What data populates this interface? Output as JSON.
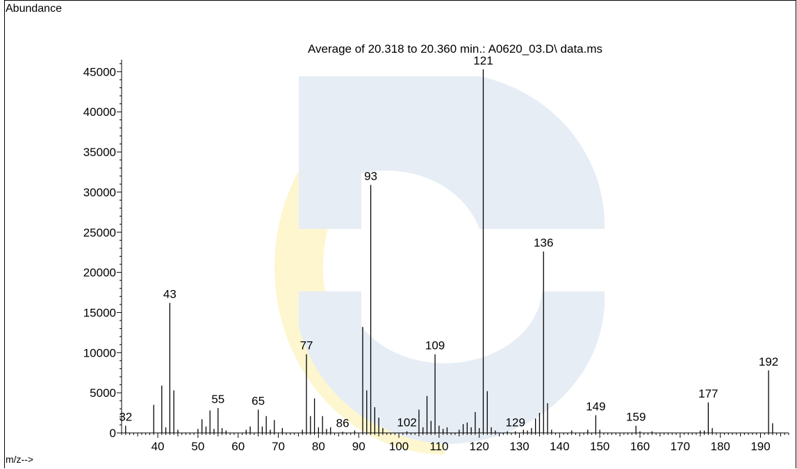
{
  "chart_data": {
    "type": "bar",
    "title": "Average of 20.318 to 20.360 min.: A0620_03.D\\ data.ms",
    "ylabel": "Abundance",
    "xlabel": "m/z-->",
    "xlim": [
      31,
      197
    ],
    "ylim": [
      0,
      46500
    ],
    "xticks": [
      40,
      50,
      60,
      70,
      80,
      90,
      100,
      110,
      120,
      130,
      140,
      150,
      160,
      170,
      180,
      190
    ],
    "yticks": [
      0,
      5000,
      10000,
      15000,
      20000,
      25000,
      30000,
      35000,
      40000,
      45000
    ],
    "peaks": [
      {
        "mz": 32,
        "abundance": 900,
        "label": "32"
      },
      {
        "mz": 39,
        "abundance": 3500
      },
      {
        "mz": 41,
        "abundance": 5900
      },
      {
        "mz": 42,
        "abundance": 700
      },
      {
        "mz": 43,
        "abundance": 16200,
        "label": "43"
      },
      {
        "mz": 44,
        "abundance": 5300
      },
      {
        "mz": 45,
        "abundance": 400
      },
      {
        "mz": 50,
        "abundance": 500
      },
      {
        "mz": 51,
        "abundance": 1700
      },
      {
        "mz": 52,
        "abundance": 800
      },
      {
        "mz": 53,
        "abundance": 2800
      },
      {
        "mz": 54,
        "abundance": 500
      },
      {
        "mz": 55,
        "abundance": 3100,
        "label": "55"
      },
      {
        "mz": 56,
        "abundance": 600
      },
      {
        "mz": 57,
        "abundance": 300
      },
      {
        "mz": 62,
        "abundance": 400
      },
      {
        "mz": 63,
        "abundance": 800
      },
      {
        "mz": 65,
        "abundance": 2900,
        "label": "65"
      },
      {
        "mz": 66,
        "abundance": 800
      },
      {
        "mz": 67,
        "abundance": 2100
      },
      {
        "mz": 68,
        "abundance": 400
      },
      {
        "mz": 69,
        "abundance": 1600
      },
      {
        "mz": 71,
        "abundance": 600
      },
      {
        "mz": 76,
        "abundance": 400
      },
      {
        "mz": 77,
        "abundance": 9800,
        "label": "77"
      },
      {
        "mz": 78,
        "abundance": 2100
      },
      {
        "mz": 79,
        "abundance": 4300
      },
      {
        "mz": 80,
        "abundance": 700
      },
      {
        "mz": 81,
        "abundance": 2100
      },
      {
        "mz": 82,
        "abundance": 500
      },
      {
        "mz": 83,
        "abundance": 700
      },
      {
        "mz": 86,
        "abundance": 150,
        "label": "86"
      },
      {
        "mz": 89,
        "abundance": 300
      },
      {
        "mz": 91,
        "abundance": 13200
      },
      {
        "mz": 92,
        "abundance": 5300
      },
      {
        "mz": 93,
        "abundance": 30900,
        "label": "93"
      },
      {
        "mz": 94,
        "abundance": 3200
      },
      {
        "mz": 95,
        "abundance": 1900
      },
      {
        "mz": 96,
        "abundance": 600
      },
      {
        "mz": 102,
        "abundance": 200,
        "label": "102"
      },
      {
        "mz": 105,
        "abundance": 2900
      },
      {
        "mz": 106,
        "abundance": 700
      },
      {
        "mz": 107,
        "abundance": 4600
      },
      {
        "mz": 108,
        "abundance": 1500
      },
      {
        "mz": 109,
        "abundance": 9800,
        "label": "109"
      },
      {
        "mz": 110,
        "abundance": 900
      },
      {
        "mz": 111,
        "abundance": 500
      },
      {
        "mz": 112,
        "abundance": 700
      },
      {
        "mz": 115,
        "abundance": 400
      },
      {
        "mz": 116,
        "abundance": 1100
      },
      {
        "mz": 117,
        "abundance": 1300
      },
      {
        "mz": 118,
        "abundance": 700
      },
      {
        "mz": 119,
        "abundance": 2600
      },
      {
        "mz": 120,
        "abundance": 600
      },
      {
        "mz": 121,
        "abundance": 45300,
        "label": "121"
      },
      {
        "mz": 122,
        "abundance": 5200
      },
      {
        "mz": 123,
        "abundance": 700
      },
      {
        "mz": 124,
        "abundance": 300
      },
      {
        "mz": 127,
        "abundance": 200
      },
      {
        "mz": 129,
        "abundance": 200,
        "label": "129"
      },
      {
        "mz": 131,
        "abundance": 400
      },
      {
        "mz": 132,
        "abundance": 300
      },
      {
        "mz": 133,
        "abundance": 600
      },
      {
        "mz": 134,
        "abundance": 1800
      },
      {
        "mz": 135,
        "abundance": 2500
      },
      {
        "mz": 136,
        "abundance": 22600,
        "label": "136"
      },
      {
        "mz": 137,
        "abundance": 3700
      },
      {
        "mz": 138,
        "abundance": 400
      },
      {
        "mz": 143,
        "abundance": 300
      },
      {
        "mz": 147,
        "abundance": 400
      },
      {
        "mz": 149,
        "abundance": 2200,
        "label": "149"
      },
      {
        "mz": 150,
        "abundance": 400
      },
      {
        "mz": 159,
        "abundance": 900,
        "label": "159"
      },
      {
        "mz": 160,
        "abundance": 200
      },
      {
        "mz": 163,
        "abundance": 200
      },
      {
        "mz": 175,
        "abundance": 300
      },
      {
        "mz": 176,
        "abundance": 300
      },
      {
        "mz": 177,
        "abundance": 3800,
        "label": "177"
      },
      {
        "mz": 178,
        "abundance": 600
      },
      {
        "mz": 192,
        "abundance": 7800,
        "label": "192"
      },
      {
        "mz": 193,
        "abundance": 1200
      }
    ],
    "colors": {
      "axis": "#000000",
      "peak": "#000000",
      "watermark_yellow": "#fdf6cf",
      "watermark_blue": "#e6edf5"
    },
    "watermark": "decorative logo"
  }
}
